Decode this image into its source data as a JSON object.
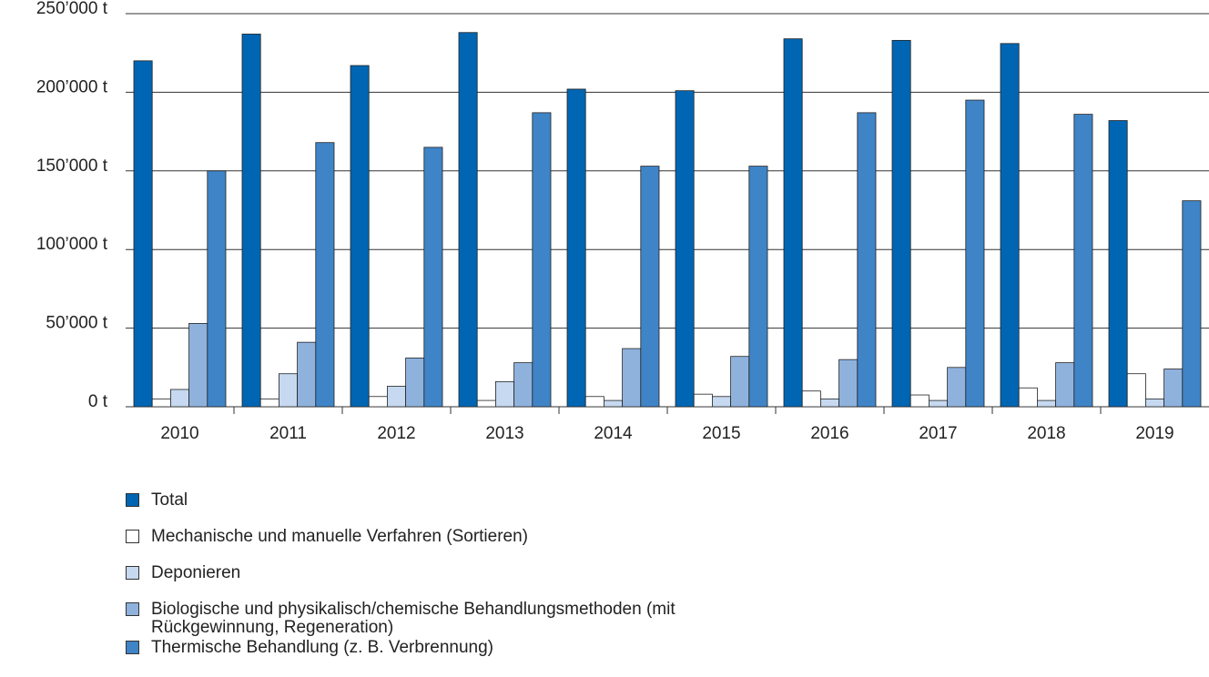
{
  "chart_data": {
    "type": "bar",
    "categories": [
      "2010",
      "2011",
      "2012",
      "2013",
      "2014",
      "2015",
      "2016",
      "2017",
      "2018",
      "2019"
    ],
    "series": [
      {
        "name": "Total",
        "color": "#0066b3",
        "values": [
          220000,
          237000,
          217000,
          238000,
          202000,
          201000,
          234000,
          233000,
          231000,
          182000
        ]
      },
      {
        "name": "Mechanische und manuelle Verfahren (Sortieren)",
        "color": "#ffffff",
        "values": [
          5000,
          5000,
          6500,
          4000,
          6500,
          8000,
          10000,
          7500,
          12000,
          21000
        ]
      },
      {
        "name": "Deponieren",
        "color": "#c6d9f0",
        "values": [
          11000,
          21000,
          13000,
          16000,
          4000,
          6500,
          5000,
          4000,
          4000,
          5000
        ]
      },
      {
        "name": "Biologische und physikalisch/chemische Behandlungsmethoden (mit Rückgewinnung, Regeneration)",
        "color": "#8fb2dd",
        "values": [
          53000,
          41000,
          31000,
          28000,
          37000,
          32000,
          30000,
          25000,
          28000,
          24000
        ]
      },
      {
        "name": "Thermische Behandlung (z. B. Verbrennung)",
        "color": "#3f84c6",
        "values": [
          150000,
          168000,
          165000,
          187000,
          153000,
          153000,
          187000,
          195000,
          186000,
          131000
        ]
      }
    ],
    "ylim": [
      0,
      250000
    ],
    "yticks": [
      {
        "value": 0,
        "label": "0 t"
      },
      {
        "value": 50000,
        "label": "50’000 t"
      },
      {
        "value": 100000,
        "label": "100’000 t"
      },
      {
        "value": 150000,
        "label": "150’000 t"
      },
      {
        "value": 200000,
        "label": "200’000 t"
      },
      {
        "value": 250000,
        "label": "250’000 t"
      }
    ],
    "grid": true
  }
}
